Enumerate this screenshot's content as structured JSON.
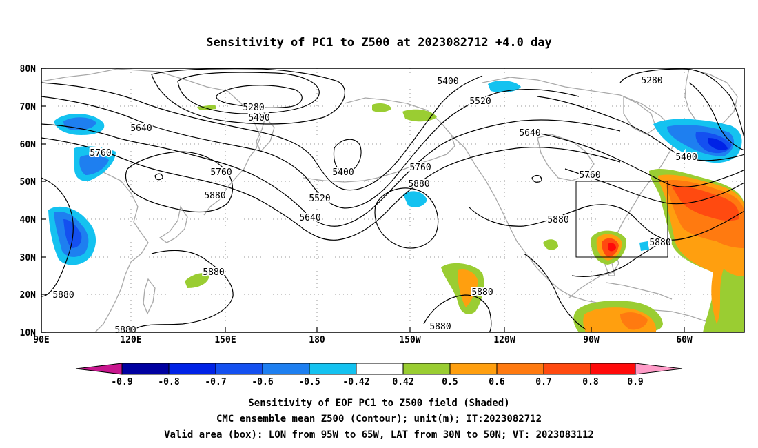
{
  "title": "Sensitivity of PC1 to Z500 at 2023082712 +4.0 day",
  "lat_labels": [
    "80N",
    "70N",
    "60N",
    "50N",
    "40N",
    "30N",
    "20N",
    "10N"
  ],
  "lon_labels": [
    "90E",
    "120E",
    "150E",
    "180",
    "150W",
    "120W",
    "90W",
    "60W"
  ],
  "contour_labels": [
    "5400",
    "5280",
    "5400",
    "5520",
    "5280",
    "5640",
    "5640",
    "5400",
    "5760",
    "5760",
    "5400",
    "5760",
    "5880",
    "5880",
    "5760",
    "5520",
    "5640",
    "5880",
    "5880",
    "5880",
    "5880",
    "5880",
    "5880",
    "5880"
  ],
  "colorbar": {
    "labels": [
      "-0.9",
      "-0.8",
      "-0.7",
      "-0.6",
      "-0.5",
      "-0.42",
      "0.42",
      "0.5",
      "0.6",
      "0.7",
      "0.8",
      "0.9"
    ],
    "colors": [
      "#c8168e",
      "#0000a0",
      "#0022e6",
      "#1450f0",
      "#1e7ff0",
      "#14c2f0",
      "#ffffff",
      "#9acd32",
      "#ff9f0f",
      "#ff7a10",
      "#ff4a10",
      "#ff0a0a",
      "#ff9cc8"
    ]
  },
  "valid_box": {
    "lon": [
      -95,
      -65
    ],
    "lat": [
      30,
      50
    ]
  },
  "caption": {
    "line1": "Sensitivity of EOF PC1 to Z500 field (Shaded)",
    "line2": "CMC ensemble mean Z500 (Contour); unit(m); IT:2023082712",
    "line3": "Valid area (box): LON from 95W to 65W, LAT from 30N to 50N; VT: 2023083112"
  }
}
